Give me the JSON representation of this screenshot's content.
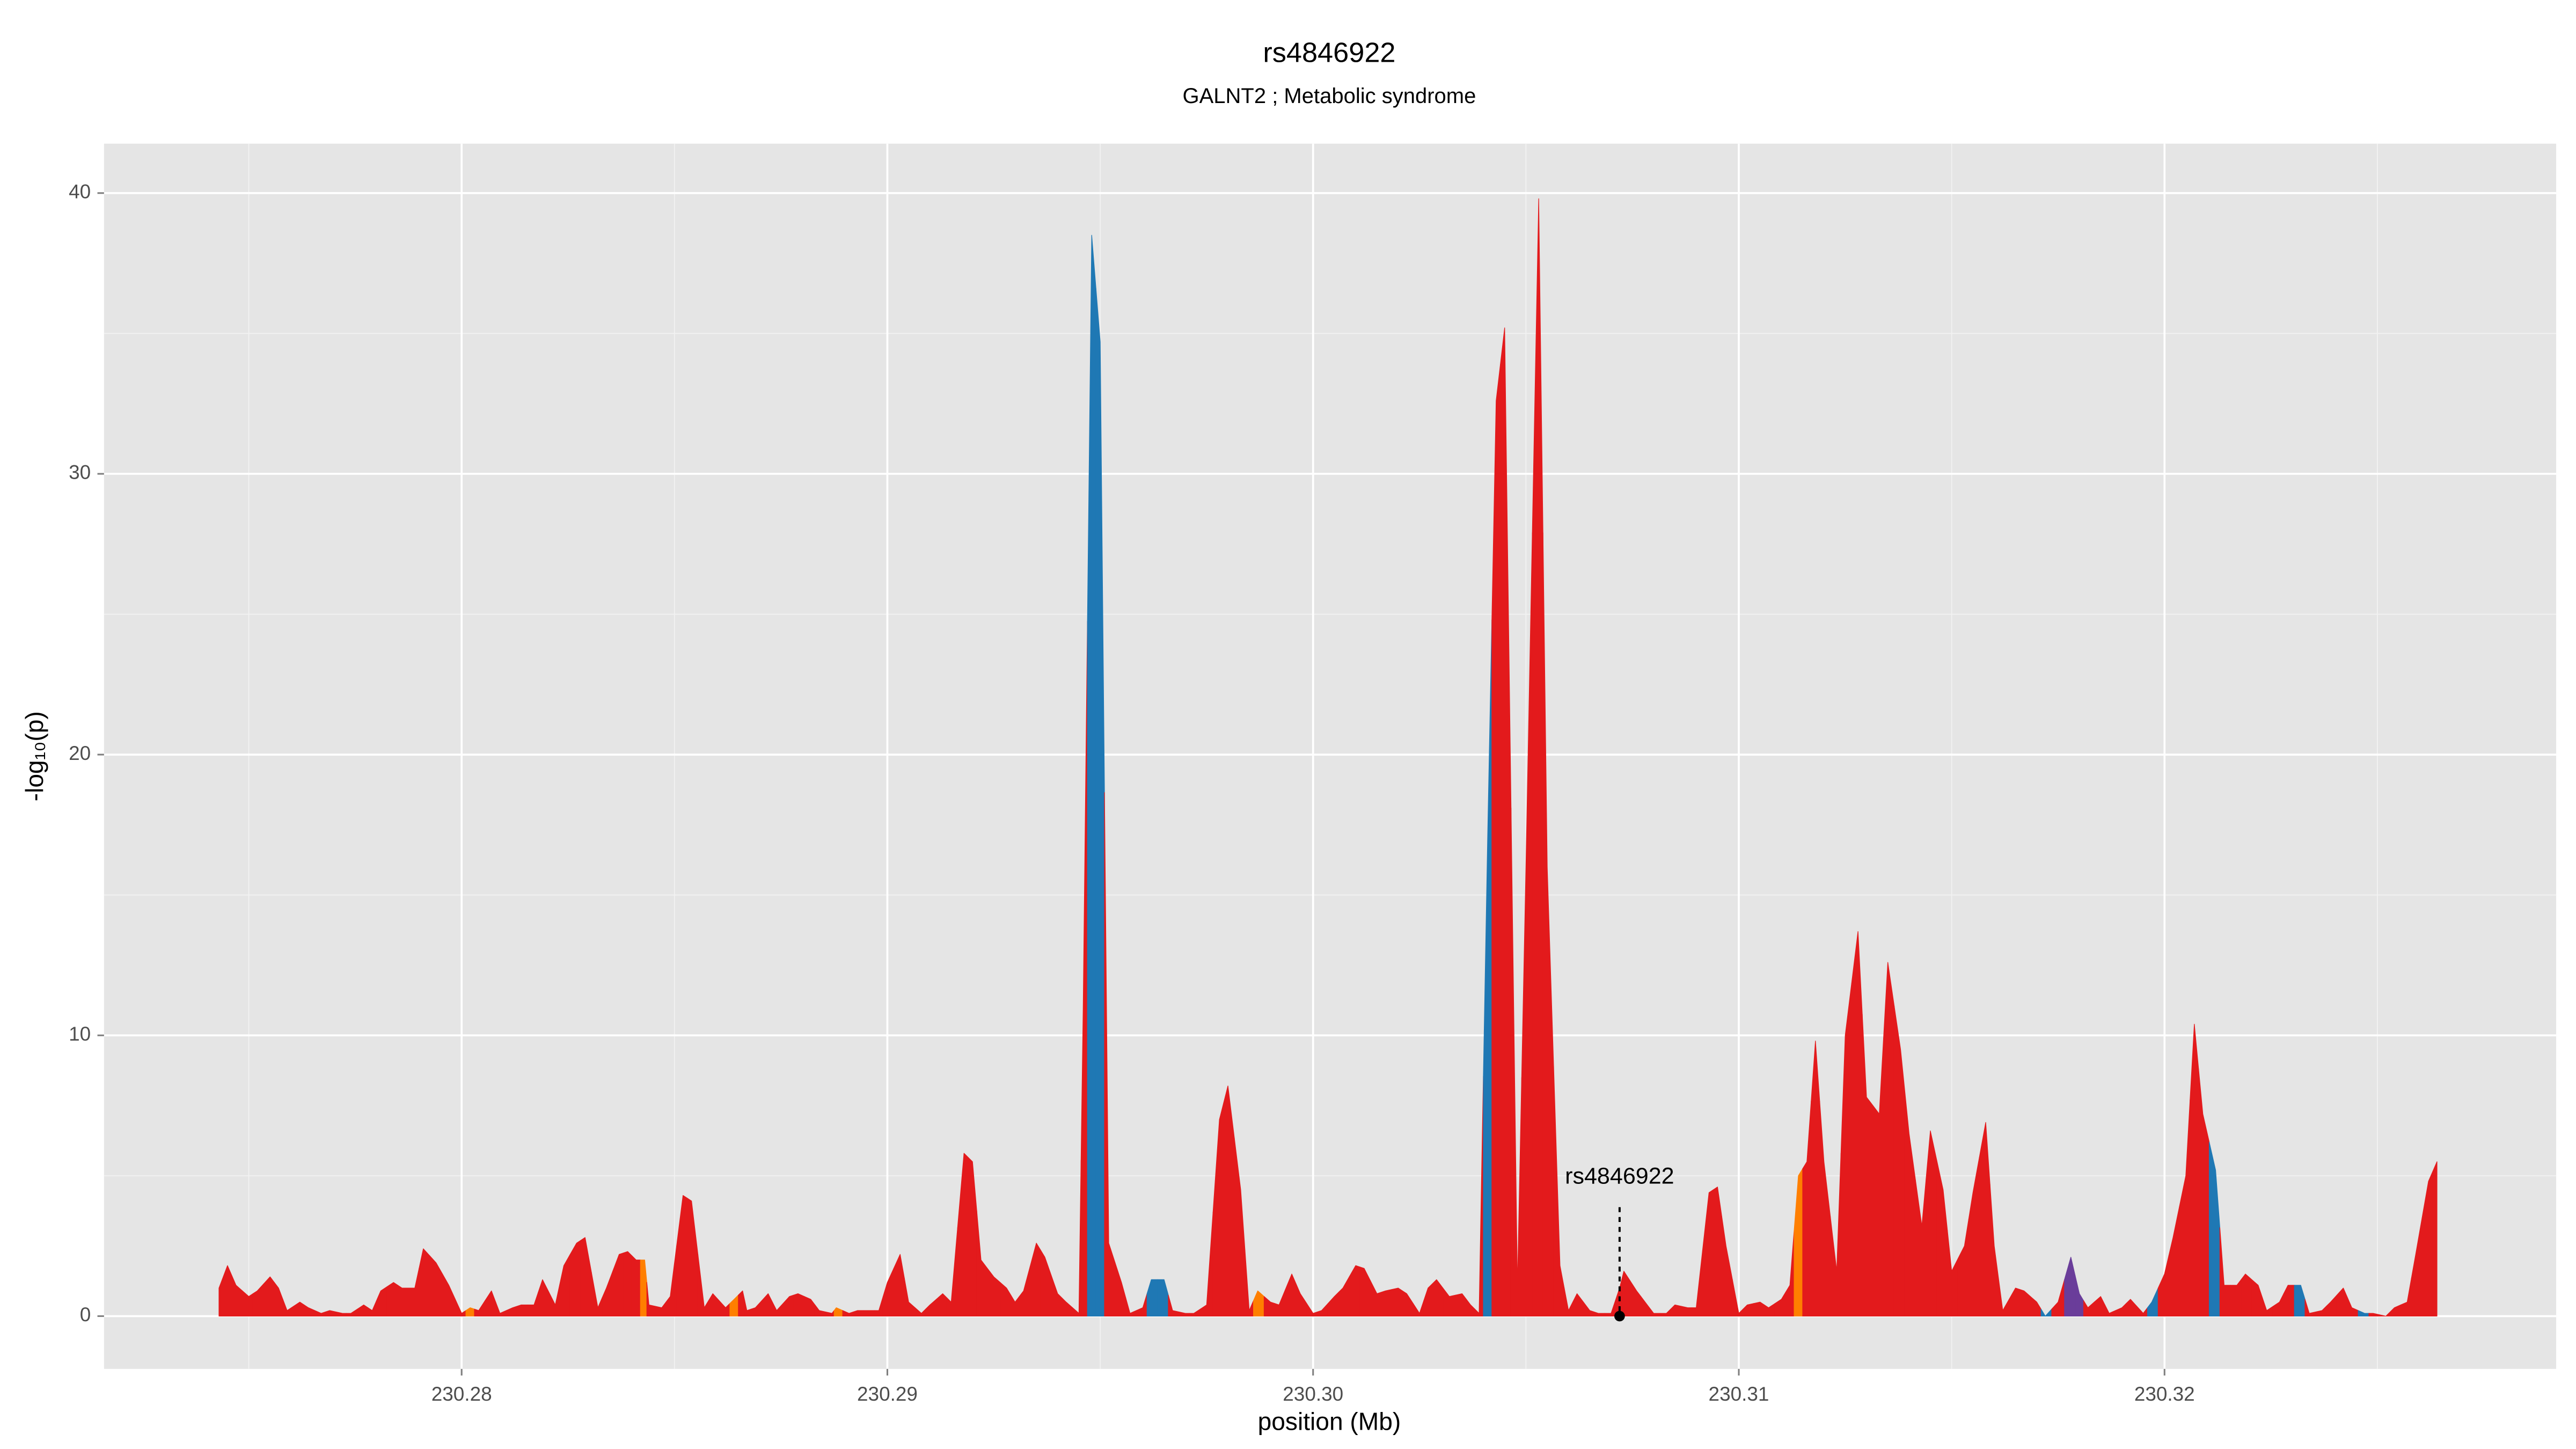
{
  "chart_data": {
    "type": "area",
    "title": "rs4846922",
    "subtitle": "GALNT2 ; Metabolic syndrome",
    "xlabel": "position (Mb)",
    "ylabel": "-log₁₀(p)",
    "xlim": [
      230.2716,
      230.3292
    ],
    "ylim": [
      -1.88,
      41.76
    ],
    "xticks": [
      230.28,
      230.29,
      {
        "value": 230.3,
        "label": "230.30"
      },
      230.31,
      230.32
    ],
    "yticks": [
      0,
      10,
      20,
      30,
      40
    ],
    "grid": true,
    "x": [
      230.2743,
      230.2745,
      230.2747,
      230.275,
      230.2752,
      230.2755,
      230.2757,
      230.2759,
      230.2762,
      230.2764,
      230.2767,
      230.2769,
      230.2772,
      230.2774,
      230.2777,
      230.2779,
      230.2781,
      230.2784,
      230.2786,
      230.2789,
      230.2791,
      230.2794,
      230.2797,
      230.28,
      230.2802,
      230.2804,
      230.2807,
      230.2809,
      230.2812,
      230.2814,
      230.2817,
      230.2819,
      230.2822,
      230.2824,
      230.2827,
      230.2829,
      230.2832,
      230.2834,
      230.2837,
      230.2839,
      230.2841,
      230.2843,
      230.2844,
      230.2847,
      230.2849,
      230.2852,
      230.2854,
      230.2857,
      230.2859,
      230.2862,
      230.2864,
      230.2866,
      230.2867,
      230.2869,
      230.2872,
      230.2874,
      230.2877,
      230.2879,
      230.2882,
      230.2884,
      230.2887,
      230.2888,
      230.2891,
      230.2893,
      230.2896,
      230.2898,
      230.29,
      230.2903,
      230.2905,
      230.2908,
      230.291,
      230.2913,
      230.2915,
      230.2918,
      230.292,
      230.2922,
      230.2925,
      230.2928,
      230.293,
      230.2932,
      230.2935,
      230.2937,
      230.294,
      230.2942,
      230.2945,
      230.2946,
      230.2948,
      230.295,
      230.2952,
      230.2955,
      230.2957,
      230.296,
      230.2962,
      230.2965,
      230.2967,
      230.297,
      230.2972,
      230.2975,
      230.2978,
      230.298,
      230.2983,
      230.2985,
      230.2987,
      230.299,
      230.2992,
      230.2995,
      230.2997,
      230.3,
      230.3002,
      230.3005,
      230.3007,
      230.301,
      230.3012,
      230.3015,
      230.3017,
      230.302,
      230.3022,
      230.3025,
      230.3027,
      230.3029,
      230.3032,
      230.3035,
      230.3037,
      230.3039,
      230.3041,
      230.3043,
      230.3045,
      230.3048,
      230.305,
      230.3053,
      230.3055,
      230.3058,
      230.306,
      230.3062,
      230.3065,
      230.3067,
      230.307,
      230.3072,
      230.3073,
      230.3076,
      230.3078,
      230.308,
      230.3083,
      230.3085,
      230.3088,
      230.309,
      230.3093,
      230.3095,
      230.3097,
      230.31,
      230.3102,
      230.3105,
      230.3107,
      230.311,
      230.3112,
      230.3114,
      230.3116,
      230.3118,
      230.312,
      230.3123,
      230.3125,
      230.3128,
      230.313,
      230.3133,
      230.3135,
      230.3138,
      230.314,
      230.3143,
      230.3145,
      230.3148,
      230.315,
      230.3153,
      230.3155,
      230.3158,
      230.316,
      230.3162,
      230.3165,
      230.3167,
      230.317,
      230.3172,
      230.3175,
      230.3178,
      230.318,
      230.3182,
      230.3185,
      230.3187,
      230.319,
      230.3192,
      230.3195,
      230.3197,
      230.32,
      230.3202,
      230.3205,
      230.3207,
      230.3209,
      230.3212,
      230.3214,
      230.3217,
      230.3219,
      230.3222,
      230.3224,
      230.3227,
      230.3229,
      230.3232,
      230.3234,
      230.3237,
      230.3239,
      230.3242,
      230.3244,
      230.3247,
      230.3249,
      230.3252,
      230.3254,
      230.3257,
      230.3259,
      230.3262,
      230.3264
    ],
    "values": [
      1.0,
      1.8,
      1.1,
      0.7,
      0.9,
      1.4,
      1.0,
      0.2,
      0.5,
      0.3,
      0.1,
      0.2,
      0.1,
      0.1,
      0.4,
      0.2,
      0.9,
      1.2,
      1.0,
      1.0,
      2.4,
      1.9,
      1.1,
      0.1,
      0.3,
      0.2,
      0.9,
      0.1,
      0.3,
      0.4,
      0.4,
      1.3,
      0.4,
      1.8,
      2.6,
      2.8,
      0.3,
      1.0,
      2.2,
      2.3,
      2.0,
      2.0,
      0.4,
      0.3,
      0.7,
      4.3,
      4.1,
      0.3,
      0.8,
      0.3,
      0.6,
      0.9,
      0.2,
      0.3,
      0.8,
      0.2,
      0.7,
      0.8,
      0.6,
      0.2,
      0.1,
      0.3,
      0.1,
      0.2,
      0.2,
      0.2,
      1.2,
      2.2,
      0.5,
      0.1,
      0.4,
      0.8,
      0.5,
      5.8,
      5.5,
      2.0,
      1.4,
      1.0,
      0.5,
      0.9,
      2.6,
      2.1,
      0.8,
      0.5,
      0.1,
      11.0,
      38.5,
      34.7,
      2.6,
      1.2,
      0.1,
      0.3,
      1.3,
      1.3,
      0.2,
      0.1,
      0.1,
      0.4,
      7.0,
      8.2,
      4.5,
      0.2,
      0.9,
      0.5,
      0.4,
      1.5,
      0.8,
      0.1,
      0.2,
      0.7,
      1.0,
      1.8,
      1.7,
      0.8,
      0.9,
      1.0,
      0.8,
      0.1,
      1.0,
      1.3,
      0.7,
      0.8,
      0.4,
      0.1,
      17.0,
      32.6,
      35.2,
      1.0,
      16.0,
      39.8,
      16.0,
      1.8,
      0.2,
      0.8,
      0.2,
      0.1,
      0.1,
      1.0,
      1.6,
      0.9,
      0.5,
      0.1,
      0.1,
      0.4,
      0.3,
      0.3,
      4.4,
      4.6,
      2.5,
      0.1,
      0.4,
      0.5,
      0.3,
      0.6,
      1.1,
      5.0,
      5.5,
      9.8,
      5.5,
      1.6,
      10.0,
      13.7,
      7.8,
      7.2,
      12.6,
      9.5,
      6.5,
      3.2,
      6.6,
      4.5,
      1.6,
      2.5,
      4.4,
      6.9,
      2.5,
      0.2,
      1.0,
      0.9,
      0.5,
      0.0,
      0.5,
      2.1,
      0.8,
      0.3,
      0.7,
      0.1,
      0.3,
      0.6,
      0.1,
      0.5,
      1.5,
      2.8,
      5.0,
      10.4,
      7.2,
      5.2,
      1.1,
      1.1,
      1.5,
      1.1,
      0.2,
      0.5,
      1.1,
      1.1,
      0.1,
      0.2,
      0.5,
      1.0,
      0.3,
      0.1,
      0.1,
      0.0,
      0.3,
      0.5,
      2.2,
      4.8,
      5.5
    ],
    "colors": [
      "#e31a1c",
      "#e31a1c",
      "#e31a1c",
      "#e31a1c",
      "#e31a1c",
      "#e31a1c",
      "#e31a1c",
      "#e31a1c",
      "#e31a1c",
      "#e31a1c",
      "#e31a1c",
      "#e31a1c",
      "#e31a1c",
      "#e31a1c",
      "#e31a1c",
      "#e31a1c",
      "#e31a1c",
      "#e31a1c",
      "#e31a1c",
      "#e31a1c",
      "#e31a1c",
      "#e31a1c",
      "#e31a1c",
      "#e31a1c",
      "#ff7f00",
      "#e31a1c",
      "#e31a1c",
      "#e31a1c",
      "#e31a1c",
      "#e31a1c",
      "#e31a1c",
      "#e31a1c",
      "#e31a1c",
      "#e31a1c",
      "#e31a1c",
      "#e31a1c",
      "#e31a1c",
      "#e31a1c",
      "#e31a1c",
      "#e31a1c",
      "#e31a1c",
      "#ff7f00",
      "#e31a1c",
      "#e31a1c",
      "#e31a1c",
      "#e31a1c",
      "#e31a1c",
      "#e31a1c",
      "#e31a1c",
      "#e31a1c",
      "#ff7f00",
      "#e31a1c",
      "#e31a1c",
      "#e31a1c",
      "#e31a1c",
      "#e31a1c",
      "#e31a1c",
      "#e31a1c",
      "#e31a1c",
      "#e31a1c",
      "#e31a1c",
      "#ff7f00",
      "#e31a1c",
      "#e31a1c",
      "#e31a1c",
      "#e31a1c",
      "#e31a1c",
      "#e31a1c",
      "#e31a1c",
      "#e31a1c",
      "#e31a1c",
      "#e31a1c",
      "#e31a1c",
      "#e31a1c",
      "#e31a1c",
      "#e31a1c",
      "#e31a1c",
      "#e31a1c",
      "#e31a1c",
      "#e31a1c",
      "#e31a1c",
      "#e31a1c",
      "#e31a1c",
      "#e31a1c",
      "#e31a1c",
      "#e31a1c",
      "#1f78b4",
      "#1f78b4",
      "#e31a1c",
      "#e31a1c",
      "#e31a1c",
      "#e31a1c",
      "#1f78b4",
      "#1f78b4",
      "#e31a1c",
      "#e31a1c",
      "#e31a1c",
      "#e31a1c",
      "#e31a1c",
      "#e31a1c",
      "#e31a1c",
      "#e31a1c",
      "#ff7f00",
      "#e31a1c",
      "#e31a1c",
      "#e31a1c",
      "#e31a1c",
      "#e31a1c",
      "#e31a1c",
      "#e31a1c",
      "#e31a1c",
      "#e31a1c",
      "#e31a1c",
      "#e31a1c",
      "#e31a1c",
      "#e31a1c",
      "#e31a1c",
      "#e31a1c",
      "#e31a1c",
      "#e31a1c",
      "#e31a1c",
      "#e31a1c",
      "#e31a1c",
      "#e31a1c",
      "#1f78b4",
      "#e31a1c",
      "#e31a1c",
      "#e31a1c",
      "#e31a1c",
      "#e31a1c",
      "#e31a1c",
      "#e31a1c",
      "#e31a1c",
      "#e31a1c",
      "#e31a1c",
      "#e31a1c",
      "#e31a1c",
      "#e31a1c",
      "#e31a1c",
      "#e31a1c",
      "#e31a1c",
      "#e31a1c",
      "#e31a1c",
      "#e31a1c",
      "#e31a1c",
      "#e31a1c",
      "#e31a1c",
      "#e31a1c",
      "#e31a1c",
      "#e31a1c",
      "#e31a1c",
      "#e31a1c",
      "#e31a1c",
      "#e31a1c",
      "#e31a1c",
      "#ff7f00",
      "#e31a1c",
      "#e31a1c",
      "#e31a1c",
      "#e31a1c",
      "#e31a1c",
      "#e31a1c",
      "#e31a1c",
      "#e31a1c",
      "#e31a1c",
      "#e31a1c",
      "#e31a1c",
      "#e31a1c",
      "#e31a1c",
      "#e31a1c",
      "#e31a1c",
      "#e31a1c",
      "#e31a1c",
      "#e31a1c",
      "#e31a1c",
      "#e31a1c",
      "#e31a1c",
      "#e31a1c",
      "#e31a1c",
      "#1f78b4",
      "#e31a1c",
      "#6a3d9a",
      "#6a3d9a",
      "#e31a1c",
      "#e31a1c",
      "#e31a1c",
      "#e31a1c",
      "#e31a1c",
      "#e31a1c",
      "#1f78b4",
      "#e31a1c",
      "#e31a1c",
      "#e31a1c",
      "#e31a1c",
      "#e31a1c",
      "#1f78b4",
      "#e31a1c",
      "#e31a1c",
      "#e31a1c",
      "#e31a1c",
      "#e31a1c",
      "#e31a1c",
      "#e31a1c",
      "#1f78b4",
      "#e31a1c",
      "#e31a1c",
      "#e31a1c",
      "#e31a1c",
      "#e31a1c",
      "#1f78b4",
      "#e31a1c",
      "#e31a1c",
      "#e31a1c",
      "#e31a1c",
      "#e31a1c",
      "#e31a1c",
      "#e31a1c"
    ],
    "annotation": {
      "text": "rs4846922",
      "x": 230.3072,
      "y": 0
    }
  }
}
